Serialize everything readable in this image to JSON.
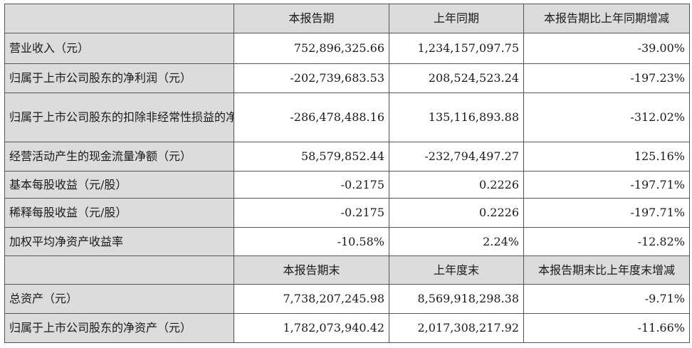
{
  "header1": {
    "col1": "本报告期",
    "col2": "上年同期",
    "col3": "本报告期比上年同期增减"
  },
  "rows1": [
    {
      "label": "营业收入（元）",
      "v1": "752,896,325.66",
      "v2": "1,234,157,097.75",
      "v3": "-39.00%"
    },
    {
      "label": "归属于上市公司股东的净利润（元）",
      "v1": "-202,739,683.53",
      "v2": "208,524,523.24",
      "v3": "-197.23%"
    },
    {
      "label": "归属于上市公司股东的扣除非经常性损益的净利润（元）",
      "v1": "-286,478,488.16",
      "v2": "135,116,893.88",
      "v3": "-312.02%"
    },
    {
      "label": "经营活动产生的现金流量净额（元）",
      "v1": "58,579,852.44",
      "v2": "-232,794,497.27",
      "v3": "125.16%"
    },
    {
      "label": "基本每股收益（元/股）",
      "v1": "-0.2175",
      "v2": "0.2226",
      "v3": "-197.71%"
    },
    {
      "label": "稀释每股收益（元/股）",
      "v1": "-0.2175",
      "v2": "0.2226",
      "v3": "-197.71%"
    },
    {
      "label": "加权平均净资产收益率",
      "v1": "-10.58%",
      "v2": "2.24%",
      "v3": "-12.82%"
    }
  ],
  "header2": {
    "col1": "本报告期末",
    "col2": "上年度末",
    "col3": "本报告期末比上年度末增减"
  },
  "rows2": [
    {
      "label": "总资产（元）",
      "v1": "7,738,207,245.98",
      "v2": "8,569,918,298.38",
      "v3": "-9.71%"
    },
    {
      "label": "归属于上市公司股东的净资产（元）",
      "v1": "1,782,073,940.42",
      "v2": "2,017,308,217.92",
      "v3": "-11.66%"
    }
  ]
}
